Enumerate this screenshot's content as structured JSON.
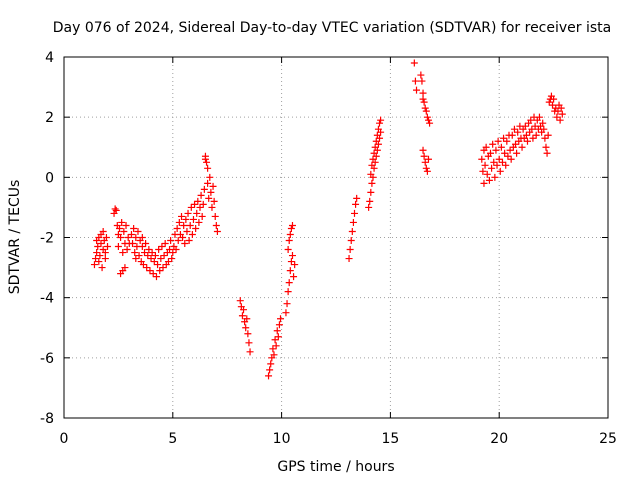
{
  "chart_data": {
    "type": "scatter",
    "title": "Day 076 of 2024, Sidereal Day-to-day VTEC variation (SDTVAR) for receiver ista",
    "xlabel": "GPS time / hours",
    "ylabel": "SDTVAR / TECUs",
    "xlim": [
      0,
      25
    ],
    "ylim": [
      -8,
      4
    ],
    "xticks": [
      0,
      5,
      10,
      15,
      20,
      25
    ],
    "yticks": [
      -8,
      -6,
      -4,
      -2,
      0,
      2,
      4
    ],
    "grid": true,
    "marker": "+",
    "color": "#ff0000",
    "series": [
      {
        "points": [
          [
            1.4,
            -2.9
          ],
          [
            1.45,
            -2.7
          ],
          [
            1.5,
            -2.5
          ],
          [
            1.5,
            -2.1
          ],
          [
            1.55,
            -2.3
          ],
          [
            1.6,
            -2.8
          ],
          [
            1.6,
            -2.0
          ],
          [
            1.65,
            -2.6
          ],
          [
            1.7,
            -2.2
          ],
          [
            1.7,
            -1.9
          ],
          [
            1.75,
            -3.0
          ],
          [
            1.8,
            -2.4
          ],
          [
            1.8,
            -1.8
          ],
          [
            1.85,
            -2.1
          ],
          [
            1.9,
            -2.7
          ],
          [
            1.9,
            -2.5
          ],
          [
            1.95,
            -2.0
          ],
          [
            2.0,
            -2.3
          ],
          [
            2.3,
            -1.2
          ],
          [
            2.35,
            -1.05
          ],
          [
            2.4,
            -1.1
          ],
          [
            2.45,
            -1.6
          ],
          [
            2.5,
            -1.9
          ],
          [
            2.5,
            -2.3
          ],
          [
            2.55,
            -1.7
          ],
          [
            2.6,
            -2.0
          ],
          [
            2.6,
            -3.2
          ],
          [
            2.65,
            -1.5
          ],
          [
            2.7,
            -2.5
          ],
          [
            2.7,
            -3.1
          ],
          [
            2.75,
            -1.8
          ],
          [
            2.8,
            -2.2
          ],
          [
            2.8,
            -3.0
          ],
          [
            2.85,
            -1.6
          ],
          [
            2.9,
            -2.4
          ],
          [
            2.95,
            -2.0
          ],
          [
            3.0,
            -2.2
          ],
          [
            3.1,
            -1.9
          ],
          [
            3.15,
            -2.2
          ],
          [
            3.2,
            -1.7
          ],
          [
            3.25,
            -2.5
          ],
          [
            3.3,
            -2.0
          ],
          [
            3.3,
            -2.7
          ],
          [
            3.35,
            -2.3
          ],
          [
            3.4,
            -1.8
          ],
          [
            3.45,
            -2.6
          ],
          [
            3.5,
            -2.1
          ],
          [
            3.55,
            -2.8
          ],
          [
            3.6,
            -2.3
          ],
          [
            3.6,
            -2.0
          ],
          [
            3.65,
            -2.9
          ],
          [
            3.7,
            -2.5
          ],
          [
            3.75,
            -2.2
          ],
          [
            3.8,
            -3.0
          ],
          [
            3.85,
            -2.6
          ],
          [
            3.9,
            -2.4
          ],
          [
            3.95,
            -3.1
          ],
          [
            4.0,
            -2.7
          ],
          [
            4.05,
            -2.5
          ],
          [
            4.1,
            -3.2
          ],
          [
            4.15,
            -2.8
          ],
          [
            4.2,
            -2.6
          ],
          [
            4.25,
            -3.3
          ],
          [
            4.3,
            -2.9
          ],
          [
            4.35,
            -2.4
          ],
          [
            4.4,
            -3.1
          ],
          [
            4.45,
            -2.7
          ],
          [
            4.5,
            -2.3
          ],
          [
            4.55,
            -3.0
          ],
          [
            4.6,
            -2.6
          ],
          [
            4.65,
            -2.2
          ],
          [
            4.7,
            -2.9
          ],
          [
            4.75,
            -2.5
          ],
          [
            4.8,
            -2.8
          ],
          [
            4.85,
            -2.4
          ],
          [
            4.9,
            -2.1
          ],
          [
            4.95,
            -2.7
          ],
          [
            5.0,
            -2.5
          ],
          [
            5.05,
            -2.3
          ],
          [
            5.1,
            -1.9
          ],
          [
            5.15,
            -2.4
          ],
          [
            5.2,
            -1.7
          ],
          [
            5.25,
            -2.1
          ],
          [
            5.3,
            -1.5
          ],
          [
            5.35,
            -1.9
          ],
          [
            5.4,
            -1.3
          ],
          [
            5.45,
            -2.0
          ],
          [
            5.5,
            -1.6
          ],
          [
            5.55,
            -2.2
          ],
          [
            5.6,
            -1.4
          ],
          [
            5.65,
            -1.8
          ],
          [
            5.7,
            -1.2
          ],
          [
            5.75,
            -2.1
          ],
          [
            5.8,
            -1.6
          ],
          [
            5.85,
            -1.0
          ],
          [
            5.9,
            -1.9
          ],
          [
            5.95,
            -1.4
          ],
          [
            6.0,
            -0.9
          ],
          [
            6.05,
            -1.7
          ],
          [
            6.1,
            -1.2
          ],
          [
            6.15,
            -0.8
          ],
          [
            6.2,
            -1.5
          ],
          [
            6.25,
            -1.0
          ],
          [
            6.3,
            -0.6
          ],
          [
            6.35,
            -1.3
          ],
          [
            6.4,
            -0.9
          ],
          [
            6.45,
            -0.4
          ],
          [
            6.5,
            0.6
          ],
          [
            6.5,
            0.7
          ],
          [
            6.55,
            0.5
          ],
          [
            6.6,
            0.3
          ],
          [
            6.6,
            -0.2
          ],
          [
            6.65,
            -0.7
          ],
          [
            6.7,
            0.0
          ],
          [
            6.75,
            -0.5
          ],
          [
            6.8,
            -1.0
          ],
          [
            6.85,
            -0.3
          ],
          [
            6.9,
            -0.8
          ],
          [
            6.95,
            -1.3
          ],
          [
            7.0,
            -1.6
          ],
          [
            7.05,
            -1.8
          ],
          [
            8.1,
            -4.1
          ],
          [
            8.15,
            -4.3
          ],
          [
            8.2,
            -4.6
          ],
          [
            8.25,
            -4.4
          ],
          [
            8.3,
            -4.8
          ],
          [
            8.35,
            -5.0
          ],
          [
            8.4,
            -4.7
          ],
          [
            8.45,
            -5.2
          ],
          [
            8.5,
            -5.5
          ],
          [
            8.55,
            -5.8
          ],
          [
            9.4,
            -6.6
          ],
          [
            9.45,
            -6.4
          ],
          [
            9.5,
            -6.2
          ],
          [
            9.55,
            -6.0
          ],
          [
            9.6,
            -5.7
          ],
          [
            9.65,
            -5.9
          ],
          [
            9.7,
            -5.4
          ],
          [
            9.75,
            -5.6
          ],
          [
            9.8,
            -5.1
          ],
          [
            9.85,
            -5.3
          ],
          [
            9.9,
            -4.9
          ],
          [
            9.95,
            -4.7
          ],
          [
            10.2,
            -4.5
          ],
          [
            10.25,
            -4.2
          ],
          [
            10.3,
            -3.8
          ],
          [
            10.3,
            -2.4
          ],
          [
            10.35,
            -3.5
          ],
          [
            10.35,
            -2.1
          ],
          [
            10.4,
            -3.1
          ],
          [
            10.4,
            -1.9
          ],
          [
            10.45,
            -2.8
          ],
          [
            10.45,
            -1.7
          ],
          [
            10.5,
            -2.6
          ],
          [
            10.5,
            -1.6
          ],
          [
            10.55,
            -3.3
          ],
          [
            10.6,
            -2.9
          ],
          [
            13.1,
            -2.7
          ],
          [
            13.15,
            -2.4
          ],
          [
            13.2,
            -2.1
          ],
          [
            13.25,
            -1.8
          ],
          [
            13.3,
            -1.5
          ],
          [
            13.35,
            -1.2
          ],
          [
            13.4,
            -0.9
          ],
          [
            13.45,
            -0.7
          ],
          [
            14.0,
            -1.0
          ],
          [
            14.05,
            -0.8
          ],
          [
            14.1,
            -0.5
          ],
          [
            14.1,
            0.1
          ],
          [
            14.15,
            -0.2
          ],
          [
            14.15,
            0.4
          ],
          [
            14.2,
            0.0
          ],
          [
            14.2,
            0.6
          ],
          [
            14.25,
            0.3
          ],
          [
            14.25,
            0.8
          ],
          [
            14.3,
            0.5
          ],
          [
            14.3,
            1.0
          ],
          [
            14.35,
            0.7
          ],
          [
            14.35,
            1.2
          ],
          [
            14.4,
            0.9
          ],
          [
            14.4,
            1.4
          ],
          [
            14.45,
            1.1
          ],
          [
            14.45,
            1.6
          ],
          [
            14.5,
            1.3
          ],
          [
            14.5,
            1.8
          ],
          [
            14.55,
            1.5
          ],
          [
            14.55,
            1.9
          ],
          [
            16.1,
            3.8
          ],
          [
            16.15,
            3.2
          ],
          [
            16.2,
            2.9
          ],
          [
            16.4,
            3.4
          ],
          [
            16.45,
            3.2
          ],
          [
            16.5,
            2.8
          ],
          [
            16.5,
            2.6
          ],
          [
            16.55,
            2.5
          ],
          [
            16.6,
            2.3
          ],
          [
            16.65,
            2.2
          ],
          [
            16.7,
            2.0
          ],
          [
            16.75,
            1.9
          ],
          [
            16.8,
            1.8
          ],
          [
            16.5,
            0.9
          ],
          [
            16.55,
            0.7
          ],
          [
            16.6,
            0.5
          ],
          [
            16.65,
            0.3
          ],
          [
            16.7,
            0.2
          ],
          [
            16.75,
            0.6
          ],
          [
            19.2,
            0.6
          ],
          [
            19.25,
            0.2
          ],
          [
            19.3,
            0.9
          ],
          [
            19.3,
            -0.2
          ],
          [
            19.35,
            0.4
          ],
          [
            19.4,
            1.0
          ],
          [
            19.45,
            0.1
          ],
          [
            19.5,
            0.7
          ],
          [
            19.55,
            -0.1
          ],
          [
            19.6,
            0.8
          ],
          [
            19.65,
            0.3
          ],
          [
            19.7,
            1.1
          ],
          [
            19.75,
            0.5
          ],
          [
            19.8,
            0.0
          ],
          [
            19.85,
            0.9
          ],
          [
            19.9,
            0.4
          ],
          [
            19.95,
            1.2
          ],
          [
            20.0,
            0.6
          ],
          [
            20.05,
            0.2
          ],
          [
            20.1,
            1.0
          ],
          [
            20.15,
            0.5
          ],
          [
            20.2,
            1.3
          ],
          [
            20.25,
            0.8
          ],
          [
            20.3,
            0.4
          ],
          [
            20.35,
            1.2
          ],
          [
            20.4,
            0.7
          ],
          [
            20.45,
            1.4
          ],
          [
            20.5,
            0.9
          ],
          [
            20.55,
            0.6
          ],
          [
            20.6,
            1.4
          ],
          [
            20.65,
            1.0
          ],
          [
            20.7,
            1.6
          ],
          [
            20.75,
            1.1
          ],
          [
            20.8,
            0.8
          ],
          [
            20.85,
            1.5
          ],
          [
            20.9,
            1.2
          ],
          [
            20.95,
            1.7
          ],
          [
            21.0,
            1.3
          ],
          [
            21.05,
            1.0
          ],
          [
            21.1,
            1.6
          ],
          [
            21.15,
            1.3
          ],
          [
            21.2,
            1.7
          ],
          [
            21.25,
            1.4
          ],
          [
            21.3,
            1.2
          ],
          [
            21.35,
            1.8
          ],
          [
            21.4,
            1.5
          ],
          [
            21.45,
            1.9
          ],
          [
            21.5,
            1.6
          ],
          [
            21.55,
            1.3
          ],
          [
            21.6,
            2.0
          ],
          [
            21.65,
            1.7
          ],
          [
            21.7,
            1.4
          ],
          [
            21.75,
            1.9
          ],
          [
            21.8,
            1.6
          ],
          [
            21.85,
            2.0
          ],
          [
            21.9,
            1.7
          ],
          [
            21.95,
            1.5
          ],
          [
            22.0,
            1.8
          ],
          [
            22.05,
            1.6
          ],
          [
            22.1,
            1.3
          ],
          [
            22.15,
            1.0
          ],
          [
            22.2,
            0.8
          ],
          [
            22.25,
            1.4
          ],
          [
            22.3,
            2.5
          ],
          [
            22.35,
            2.6
          ],
          [
            22.4,
            2.7
          ],
          [
            22.45,
            2.4
          ],
          [
            22.5,
            2.6
          ],
          [
            22.55,
            2.2
          ],
          [
            22.6,
            2.3
          ],
          [
            22.65,
            2.0
          ],
          [
            22.7,
            2.2
          ],
          [
            22.75,
            2.4
          ],
          [
            22.8,
            1.9
          ],
          [
            22.85,
            2.3
          ],
          [
            22.9,
            2.1
          ]
        ]
      }
    ]
  }
}
